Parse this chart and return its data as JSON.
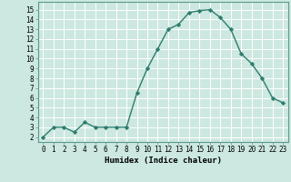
{
  "x": [
    0,
    1,
    2,
    3,
    4,
    5,
    6,
    7,
    8,
    9,
    10,
    11,
    12,
    13,
    14,
    15,
    16,
    17,
    18,
    19,
    20,
    21,
    22,
    23
  ],
  "y": [
    2.0,
    3.0,
    3.0,
    2.5,
    3.5,
    3.0,
    3.0,
    3.0,
    3.0,
    6.5,
    9.0,
    11.0,
    13.0,
    13.5,
    14.7,
    14.9,
    15.0,
    14.2,
    13.0,
    10.5,
    9.5,
    8.0,
    6.0,
    5.5
  ],
  "xlabel": "Humidex (Indice chaleur)",
  "ylim": [
    1.5,
    15.8
  ],
  "xlim": [
    -0.5,
    23.5
  ],
  "yticks": [
    2,
    3,
    4,
    5,
    6,
    7,
    8,
    9,
    10,
    11,
    12,
    13,
    14,
    15
  ],
  "xticks": [
    0,
    1,
    2,
    3,
    4,
    5,
    6,
    7,
    8,
    9,
    10,
    11,
    12,
    13,
    14,
    15,
    16,
    17,
    18,
    19,
    20,
    21,
    22,
    23
  ],
  "line_color": "#2e7d6e",
  "marker": "D",
  "marker_size": 2.2,
  "bg_color": "#cce8e0",
  "grid_color": "#ffffff",
  "axes_bg": "#cce8e0",
  "tick_fontsize": 5.5,
  "xlabel_fontsize": 6.5
}
